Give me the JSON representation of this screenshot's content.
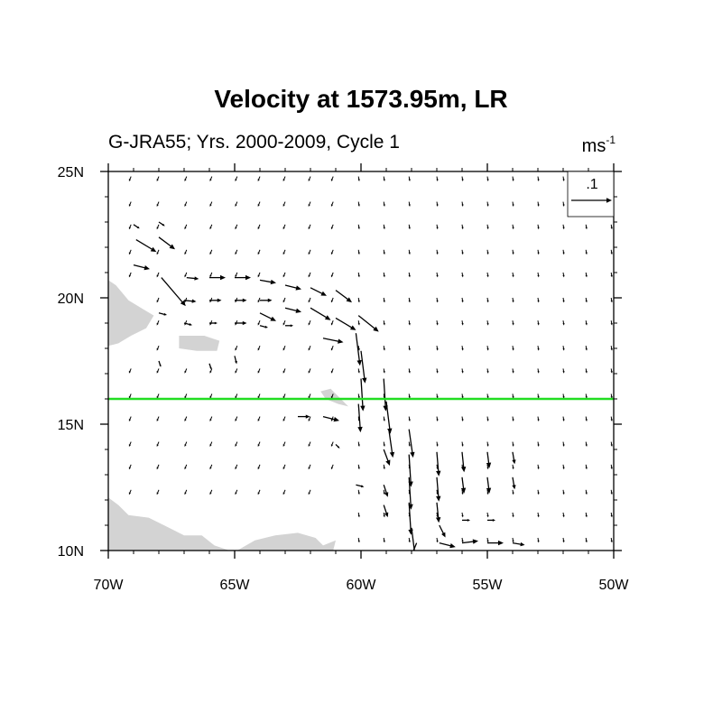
{
  "chart_data": {
    "type": "vector",
    "title": "Velocity at 1573.95m, LR",
    "subtitle": "G-JRA55; Yrs. 2000-2009, Cycle 1",
    "units_base": "ms",
    "units_exp": "-1",
    "reference_vector": {
      "label": ".1",
      "magnitude": 0.1
    },
    "x_axis": {
      "range": [
        -70,
        -50
      ],
      "ticks": [
        -70,
        -65,
        -60,
        -55,
        -50
      ],
      "tick_labels": [
        "70W",
        "65W",
        "60W",
        "55W",
        "50W"
      ]
    },
    "y_axis": {
      "range": [
        10,
        25
      ],
      "ticks": [
        10,
        15,
        20,
        25
      ],
      "tick_labels": [
        "10N",
        "15N",
        "20N",
        "25N"
      ]
    },
    "reference_line": {
      "lat": 16,
      "color": "#22dd22"
    },
    "land_color": "#d3d3d3",
    "land": [
      [
        [
          -70,
          20.7
        ],
        [
          -69.7,
          20.5
        ],
        [
          -69.2,
          19.9
        ],
        [
          -68.7,
          19.6
        ],
        [
          -68.2,
          19.3
        ],
        [
          -68.5,
          18.8
        ],
        [
          -69.1,
          18.5
        ],
        [
          -69.6,
          18.2
        ],
        [
          -70,
          18.1
        ]
      ],
      [
        [
          -67.2,
          18.5
        ],
        [
          -66.2,
          18.5
        ],
        [
          -65.6,
          18.3
        ],
        [
          -65.7,
          17.9
        ],
        [
          -66.5,
          17.9
        ],
        [
          -67.2,
          18.0
        ]
      ],
      [
        [
          -70,
          12.1
        ],
        [
          -69.6,
          11.8
        ],
        [
          -69.2,
          11.4
        ],
        [
          -68.4,
          11.3
        ],
        [
          -67.6,
          10.9
        ],
        [
          -67.0,
          10.6
        ],
        [
          -66.3,
          10.6
        ],
        [
          -65.8,
          10.2
        ],
        [
          -65.2,
          10.0
        ],
        [
          -70,
          10.0
        ]
      ],
      [
        [
          -64.9,
          10.0
        ],
        [
          -64.2,
          10.4
        ],
        [
          -63.4,
          10.6
        ],
        [
          -62.5,
          10.7
        ],
        [
          -61.8,
          10.5
        ],
        [
          -61.5,
          10.2
        ],
        [
          -61.0,
          10.4
        ],
        [
          -61.1,
          10.0
        ]
      ],
      [
        [
          -60.5,
          15.7
        ],
        [
          -60.9,
          15.8
        ],
        [
          -61.4,
          16.0
        ],
        [
          -61.6,
          16.3
        ],
        [
          -61.2,
          16.4
        ]
      ]
    ],
    "vectors": [
      {
        "lon": -67.9,
        "lat": 20.8,
        "u": 0.06,
        "v": -0.07
      },
      {
        "lon": -68.9,
        "lat": 22.3,
        "u": 0.05,
        "v": -0.03
      },
      {
        "lon": -69.0,
        "lat": 21.3,
        "u": 0.04,
        "v": -0.01
      },
      {
        "lon": -68.0,
        "lat": 22.4,
        "u": 0.04,
        "v": -0.03
      },
      {
        "lon": -66.9,
        "lat": 20.8,
        "u": 0.03,
        "v": -0.003
      },
      {
        "lon": -66.0,
        "lat": 20.8,
        "u": 0.04,
        "v": 0
      },
      {
        "lon": -65.0,
        "lat": 20.8,
        "u": 0.04,
        "v": 0
      },
      {
        "lon": -64.0,
        "lat": 20.7,
        "u": 0.04,
        "v": -0.007
      },
      {
        "lon": -63.0,
        "lat": 20.5,
        "u": 0.04,
        "v": -0.01
      },
      {
        "lon": -62.0,
        "lat": 20.4,
        "u": 0.04,
        "v": -0.02
      },
      {
        "lon": -61.0,
        "lat": 20.3,
        "u": 0.04,
        "v": -0.03
      },
      {
        "lon": -62.0,
        "lat": 19.6,
        "u": 0.05,
        "v": -0.03
      },
      {
        "lon": -61.0,
        "lat": 19.2,
        "u": 0.05,
        "v": -0.03
      },
      {
        "lon": -60.1,
        "lat": 19.3,
        "u": 0.05,
        "v": -0.04
      },
      {
        "lon": -61.5,
        "lat": 18.4,
        "u": 0.05,
        "v": -0.01
      },
      {
        "lon": -60.2,
        "lat": 18.6,
        "u": 0.01,
        "v": -0.08
      },
      {
        "lon": -63.0,
        "lat": 19.6,
        "u": 0.04,
        "v": -0.01
      },
      {
        "lon": -64.0,
        "lat": 19.4,
        "u": 0.04,
        "v": -0.02
      },
      {
        "lon": -67.0,
        "lat": 19.9,
        "u": 0.03,
        "v": -0.003
      },
      {
        "lon": -66.0,
        "lat": 19.9,
        "u": 0.03,
        "v": 0
      },
      {
        "lon": -65.0,
        "lat": 19.9,
        "u": 0.03,
        "v": 0
      },
      {
        "lon": -64.0,
        "lat": 19.9,
        "u": 0.03,
        "v": 0
      },
      {
        "lon": -63.0,
        "lat": 18.9,
        "u": 0.02,
        "v": 0
      },
      {
        "lon": -64.0,
        "lat": 18.9,
        "u": 0.02,
        "v": -0.005
      },
      {
        "lon": -65.0,
        "lat": 19.0,
        "u": 0.03,
        "v": 0
      },
      {
        "lon": -66.0,
        "lat": 19.0,
        "u": 0.02,
        "v": 0
      },
      {
        "lon": -67.0,
        "lat": 19.0,
        "u": 0.02,
        "v": -0.005
      },
      {
        "lon": -68.0,
        "lat": 19.4,
        "u": 0.02,
        "v": -0.005
      },
      {
        "lon": -60.0,
        "lat": 17.9,
        "u": 0.01,
        "v": -0.08
      },
      {
        "lon": -60.0,
        "lat": 16.8,
        "u": 0.005,
        "v": -0.08
      },
      {
        "lon": -60.1,
        "lat": 15.8,
        "u": 0.005,
        "v": -0.07
      },
      {
        "lon": -59.1,
        "lat": 16.8,
        "u": 0.005,
        "v": -0.08
      },
      {
        "lon": -59.0,
        "lat": 15.9,
        "u": 0.01,
        "v": -0.08
      },
      {
        "lon": -58.9,
        "lat": 14.8,
        "u": 0.01,
        "v": -0.07
      },
      {
        "lon": -58.1,
        "lat": 14.8,
        "u": 0.01,
        "v": -0.07
      },
      {
        "lon": -58.1,
        "lat": 13.8,
        "u": 0.005,
        "v": -0.08
      },
      {
        "lon": -58.1,
        "lat": 12.9,
        "u": 0.005,
        "v": -0.08
      },
      {
        "lon": -58.1,
        "lat": 11.9,
        "u": 0.005,
        "v": -0.08
      },
      {
        "lon": -58.0,
        "lat": 10.9,
        "u": 0.01,
        "v": -0.08
      },
      {
        "lon": -57.8,
        "lat": 10.3,
        "u": -0.02,
        "v": -0.05
      },
      {
        "lon": -59.1,
        "lat": 14.0,
        "u": 0.015,
        "v": -0.04
      },
      {
        "lon": -59.1,
        "lat": 12.6,
        "u": 0.01,
        "v": -0.03
      },
      {
        "lon": -59.1,
        "lat": 11.8,
        "u": 0.01,
        "v": -0.03
      },
      {
        "lon": -57.0,
        "lat": 13.9,
        "u": 0.005,
        "v": -0.06
      },
      {
        "lon": -57.0,
        "lat": 12.9,
        "u": 0.005,
        "v": -0.06
      },
      {
        "lon": -57.0,
        "lat": 11.9,
        "u": 0.005,
        "v": -0.05
      },
      {
        "lon": -56.9,
        "lat": 11.0,
        "u": 0.015,
        "v": -0.03
      },
      {
        "lon": -56.9,
        "lat": 10.3,
        "u": 0.04,
        "v": -0.01
      },
      {
        "lon": -56.0,
        "lat": 10.3,
        "u": 0.04,
        "v": 0.005
      },
      {
        "lon": -55.0,
        "lat": 10.3,
        "u": 0.04,
        "v": 0
      },
      {
        "lon": -54.0,
        "lat": 10.3,
        "u": 0.03,
        "v": -0.005
      },
      {
        "lon": -55.0,
        "lat": 11.2,
        "u": 0.02,
        "v": 0
      },
      {
        "lon": -56.0,
        "lat": 11.2,
        "u": 0.02,
        "v": 0
      },
      {
        "lon": -56.0,
        "lat": 13.9,
        "u": 0.005,
        "v": -0.05
      },
      {
        "lon": -55.0,
        "lat": 13.9,
        "u": 0.005,
        "v": -0.04
      },
      {
        "lon": -55.0,
        "lat": 12.9,
        "u": 0.005,
        "v": -0.04
      },
      {
        "lon": -56.0,
        "lat": 12.9,
        "u": 0.005,
        "v": -0.04
      },
      {
        "lon": -54.0,
        "lat": 13.9,
        "u": 0.005,
        "v": -0.03
      },
      {
        "lon": -54.0,
        "lat": 12.9,
        "u": 0.005,
        "v": -0.03
      },
      {
        "lon": -61.5,
        "lat": 15.3,
        "u": 0.04,
        "v": -0.01
      },
      {
        "lon": -62.5,
        "lat": 15.3,
        "u": 0.03,
        "v": 0
      },
      {
        "lon": -60.2,
        "lat": 12.6,
        "u": 0.02,
        "v": -0.005
      },
      {
        "lon": -61.0,
        "lat": 14.2,
        "u": 0.01,
        "v": -0.01
      },
      {
        "lon": -65.0,
        "lat": 17.7,
        "u": 0.005,
        "v": -0.02
      },
      {
        "lon": -66.0,
        "lat": 17.4,
        "u": 0.005,
        "v": -0.015
      },
      {
        "lon": -68.0,
        "lat": 17.5,
        "u": 0.005,
        "v": -0.015
      },
      {
        "lon": -69.0,
        "lat": 22.9,
        "u": 0.015,
        "v": -0.01
      },
      {
        "lon": -68.0,
        "lat": 23.0,
        "u": 0.015,
        "v": -0.01
      }
    ]
  }
}
